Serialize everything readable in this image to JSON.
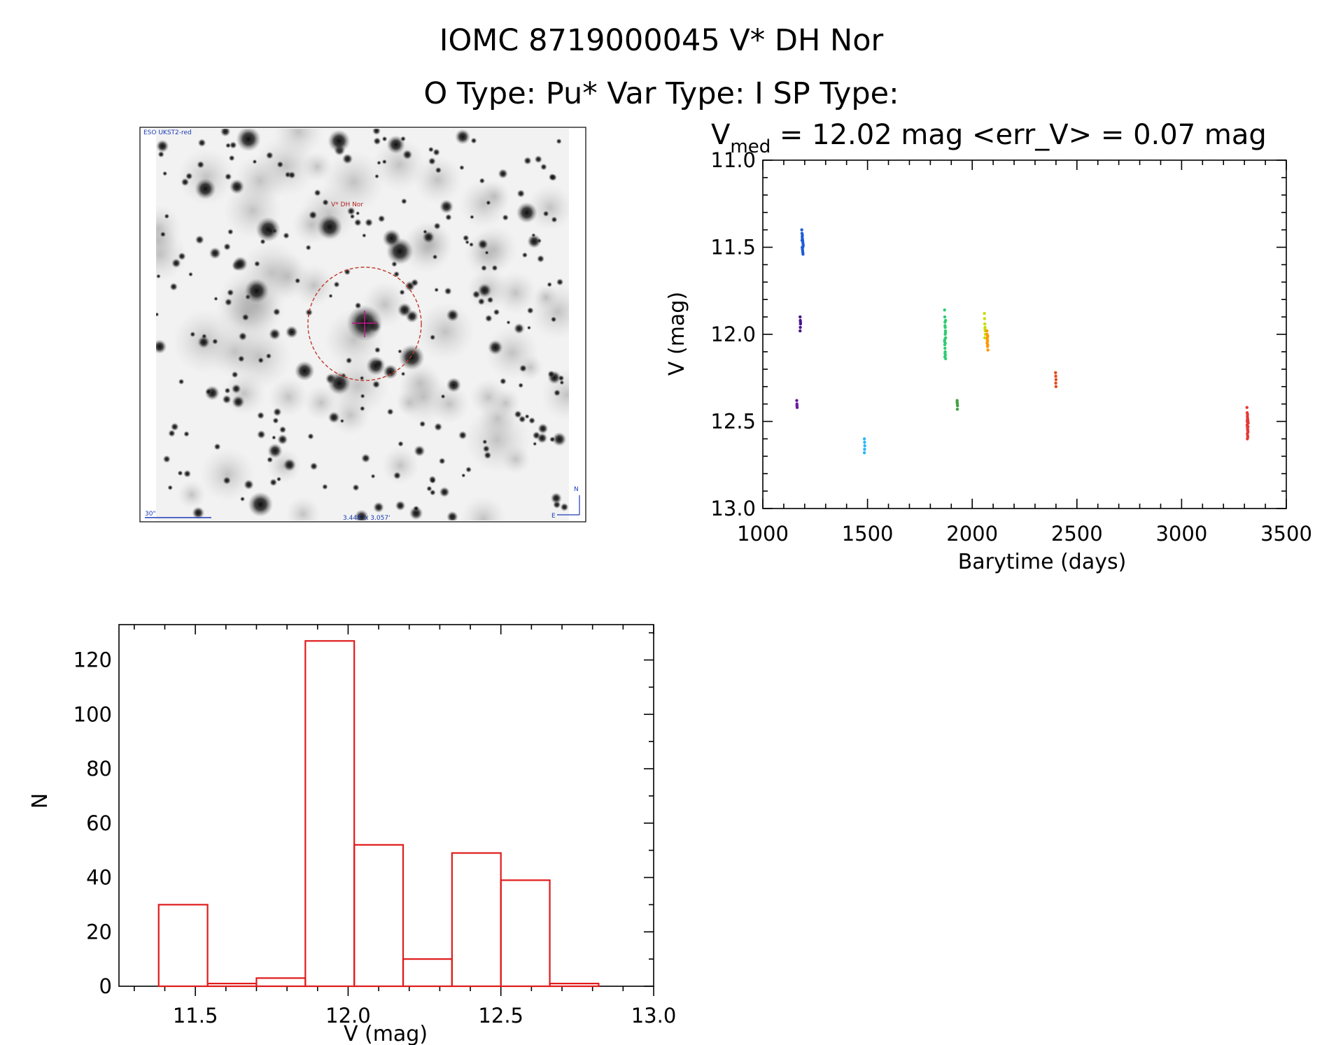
{
  "header": {
    "line1": "IOMC 8719000045    V* DH Nor",
    "line2": "O Type: Pu*  Var Type: I  SP Type:"
  },
  "image_panel": {
    "survey_label": "ESO UKST2-red",
    "target_label": "V* DH Nor",
    "scale_label": "30\"",
    "fov_label": "3.448' x 3.057'",
    "north_label": "N",
    "east_label": "E",
    "colors": {
      "background": "#f2f2f2",
      "star": "#111111",
      "circle": "#c0392b",
      "label": "#b22222",
      "overlay": "#1a3bb5",
      "crosshair": "#c2188b"
    }
  },
  "chart_data": [
    {
      "type": "scatter",
      "name": "light-curve",
      "title_main": "V",
      "title_sub": "med",
      "title_rest": " = 12.02 mag <err_V> = 0.07 mag",
      "xlabel": "Barytime (days)",
      "ylabel": "V (mag)",
      "xlim": [
        1000,
        3500
      ],
      "ylim": [
        13.0,
        11.0
      ],
      "y_inverted": true,
      "xticks": [
        1000,
        1500,
        2000,
        2500,
        3000,
        3500
      ],
      "xtick_labels": [
        "1000",
        "1500",
        "2000",
        "2500",
        "3000",
        "3500"
      ],
      "yticks": [
        11.0,
        11.5,
        12.0,
        12.5,
        13.0
      ],
      "ytick_labels": [
        "11.0",
        "11.5",
        "12.0",
        "12.5",
        "13.0"
      ],
      "series": [
        {
          "name": "t1160a",
          "color": "#6a1b9a",
          "x": [
            1162,
            1163,
            1164,
            1163
          ],
          "y": [
            12.38,
            12.4,
            12.42,
            12.41
          ]
        },
        {
          "name": "t1180a",
          "color": "#4a148c",
          "x": [
            1178,
            1179,
            1180,
            1179,
            1180,
            1178
          ],
          "y": [
            11.9,
            11.92,
            11.94,
            11.96,
            11.93,
            11.98
          ]
        },
        {
          "name": "t1190",
          "color": "#1e5bd8",
          "x": [
            1186,
            1187,
            1188,
            1189,
            1190,
            1191,
            1192,
            1193,
            1188,
            1189,
            1190,
            1191,
            1192,
            1187,
            1189,
            1191
          ],
          "y": [
            11.4,
            11.42,
            11.44,
            11.45,
            11.46,
            11.47,
            11.48,
            11.49,
            11.5,
            11.51,
            11.52,
            11.53,
            11.54,
            11.46,
            11.43,
            11.5
          ]
        },
        {
          "name": "t1490",
          "color": "#29b6f6",
          "x": [
            1485,
            1486,
            1487,
            1486,
            1485
          ],
          "y": [
            12.6,
            12.62,
            12.64,
            12.66,
            12.68
          ]
        },
        {
          "name": "t1870",
          "color": "#2ecc71",
          "x": [
            1868,
            1869,
            1870,
            1871,
            1872,
            1873,
            1868,
            1869,
            1870,
            1871,
            1872,
            1873,
            1870,
            1871,
            1869,
            1872,
            1870,
            1871,
            1873,
            1869
          ],
          "y": [
            11.86,
            11.9,
            11.93,
            11.96,
            11.99,
            12.02,
            12.04,
            12.06,
            12.08,
            12.1,
            12.12,
            12.14,
            11.95,
            12.0,
            12.03,
            11.98,
            12.11,
            12.05,
            11.92,
            12.13
          ]
        },
        {
          "name": "t1930",
          "color": "#43a047",
          "x": [
            1928,
            1929,
            1930,
            1929,
            1928
          ],
          "y": [
            12.38,
            12.4,
            12.41,
            12.43,
            12.39
          ]
        },
        {
          "name": "t2060",
          "color": "#c6e000",
          "x": [
            2058,
            2059,
            2060,
            2061,
            2062,
            2063,
            2060,
            2061
          ],
          "y": [
            11.88,
            11.91,
            11.94,
            11.96,
            11.98,
            12.0,
            12.02,
            11.97
          ]
        },
        {
          "name": "t2075",
          "color": "#ff9800",
          "x": [
            2070,
            2071,
            2072,
            2073,
            2074,
            2075,
            2072,
            2073,
            2074,
            2071
          ],
          "y": [
            11.98,
            12.0,
            12.02,
            12.04,
            12.06,
            12.09,
            12.03,
            12.07,
            12.01,
            12.05
          ]
        },
        {
          "name": "t2400",
          "color": "#e64a19",
          "x": [
            2398,
            2399,
            2400,
            2399,
            2400
          ],
          "y": [
            12.22,
            12.24,
            12.26,
            12.28,
            12.3
          ]
        },
        {
          "name": "t3320",
          "color": "#e53935",
          "x": [
            3312,
            3313,
            3314,
            3315,
            3316,
            3317,
            3318,
            3313,
            3314,
            3315,
            3316,
            3317,
            3314,
            3315,
            3316,
            3313,
            3317,
            3315,
            3314,
            3316,
            3315,
            3314
          ],
          "y": [
            12.42,
            12.45,
            12.47,
            12.48,
            12.49,
            12.5,
            12.51,
            12.52,
            12.53,
            12.54,
            12.55,
            12.56,
            12.57,
            12.58,
            12.59,
            12.5,
            12.53,
            12.46,
            12.6,
            12.51,
            12.55,
            12.49
          ]
        }
      ]
    },
    {
      "type": "bar",
      "name": "histogram",
      "xlabel": "V (mag)",
      "ylabel": "N",
      "xlim": [
        11.25,
        13.0
      ],
      "ylim": [
        0,
        133
      ],
      "bin_edges": [
        11.38,
        11.54,
        11.7,
        11.86,
        12.02,
        12.18,
        12.34,
        12.5,
        12.66,
        12.82
      ],
      "values": [
        30,
        1,
        3,
        127,
        52,
        10,
        49,
        39,
        1
      ],
      "color": "#e01b1b",
      "xticks": [
        11.5,
        12.0,
        12.5,
        13.0
      ],
      "xtick_labels": [
        "11.5",
        "12.0",
        "12.5",
        "13.0"
      ],
      "yticks": [
        0,
        20,
        40,
        60,
        80,
        100,
        120
      ],
      "ytick_labels": [
        "0",
        "20",
        "40",
        "60",
        "80",
        "100",
        "120"
      ]
    }
  ]
}
